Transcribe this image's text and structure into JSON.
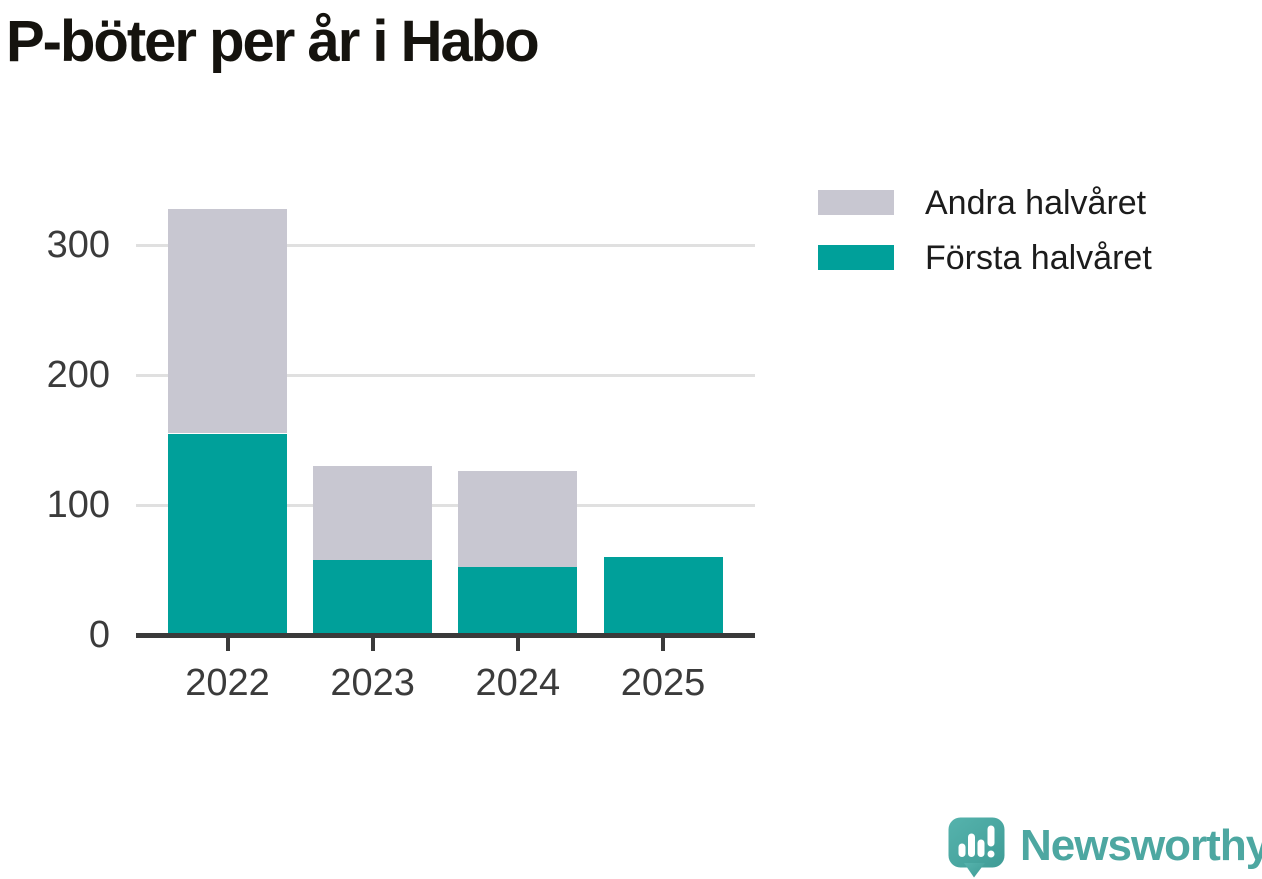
{
  "title": "P-böter per år i Habo",
  "legend": {
    "items": [
      {
        "label": "Andra halvåret",
        "color": "#c8c7d1"
      },
      {
        "label": "Första halvåret",
        "color": "#00a09a"
      }
    ]
  },
  "chart_data": {
    "type": "bar",
    "stacked": true,
    "title": "P-böter per år i Habo",
    "categories": [
      "2022",
      "2023",
      "2024",
      "2025"
    ],
    "series": [
      {
        "name": "Första halvåret",
        "color": "#00a09a",
        "values": [
          155,
          58,
          52,
          60
        ]
      },
      {
        "name": "Andra halvåret",
        "color": "#c8c7d1",
        "values": [
          173,
          72,
          74,
          0
        ]
      }
    ],
    "totals": [
      328,
      130,
      126,
      60
    ],
    "xlabel": "",
    "ylabel": "",
    "ylim": [
      0,
      340
    ],
    "yticks": [
      0,
      100,
      200,
      300
    ],
    "grid": true,
    "legend_position": "top-right"
  },
  "branding": {
    "logo_text": "Newsworthy",
    "logo_icon": "speech-bubble-with-bar-chart-and-exclamation",
    "logo_color": "#4da7a1"
  },
  "colors": {
    "first_half": "#00a09a",
    "second_half": "#c8c7d1",
    "grid": "#e0e0e0",
    "axis": "#3a3a3a",
    "tick_label": "#3b3b3b",
    "title": "#15130e",
    "background": "#ffffff"
  }
}
